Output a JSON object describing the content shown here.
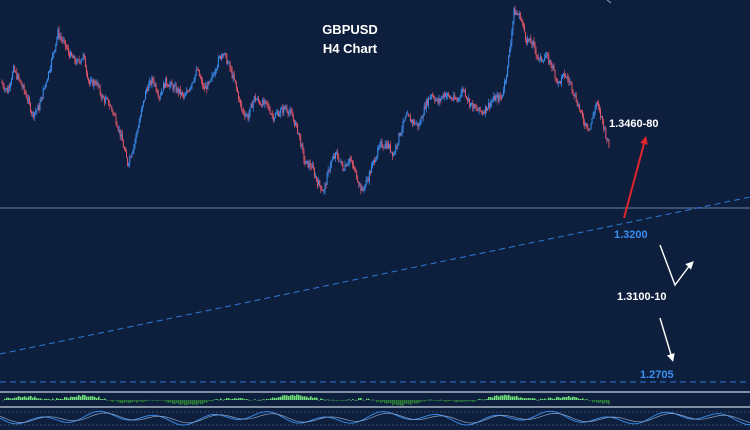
{
  "title": "GBPUSD",
  "subtitle": "H4  Chart",
  "colors": {
    "background": "#0e1f3d",
    "candle_up": "#3a8ef0",
    "candle_down": "#e0566a",
    "trendline": "#2f78d8",
    "level_line": "#8aa4c8",
    "target_up_arrow": "#e0242c",
    "target_down_arrow": "#ffffff",
    "level_label_blue": "#3a8ef0",
    "level_label_white": "#ffffff",
    "histogram_up": "#6fe07a",
    "histogram_down": "#2c7a3a"
  },
  "labels": {
    "resistance_target": "1.3460-80",
    "pivot_level": "1.3200",
    "support_target": "1.3100-10",
    "lower_level": "1.2705"
  },
  "chart_data": {
    "type": "line",
    "series": [
      {
        "values": [
          1.3355,
          1.3335,
          1.338,
          1.3355,
          1.3325,
          1.3285,
          1.33,
          1.335,
          1.34,
          1.346,
          1.3435,
          1.341,
          1.3395,
          1.341,
          1.335,
          1.3355,
          1.332,
          1.331,
          1.328,
          1.3235,
          1.318,
          1.322,
          1.328,
          1.334,
          1.336,
          1.3325,
          1.3355,
          1.3345,
          1.3335,
          1.332,
          1.335,
          1.338,
          1.334,
          1.335,
          1.339,
          1.342,
          1.339,
          1.335,
          1.3295,
          1.328,
          1.332,
          1.331,
          1.3305,
          1.328,
          1.329,
          1.33,
          1.328,
          1.3245,
          1.318,
          1.3175,
          1.314,
          1.312,
          1.318,
          1.32,
          1.317,
          1.319,
          1.316,
          1.312,
          1.315,
          1.319,
          1.322,
          1.322,
          1.32,
          1.3245,
          1.328,
          1.327,
          1.326,
          1.3305,
          1.333,
          1.331,
          1.333,
          1.332,
          1.3315,
          1.334,
          1.331,
          1.3295,
          1.329,
          1.3305,
          1.332,
          1.332,
          1.3385,
          1.3505,
          1.3495,
          1.3445,
          1.3435,
          1.34,
          1.341,
          1.339,
          1.335,
          1.337,
          1.335,
          1.331,
          1.327,
          1.3255,
          1.331,
          1.327,
          1.3215
        ]
      }
    ],
    "levels": [
      1.348,
      1.346,
      1.32,
      1.311,
      1.31,
      1.2705
    ],
    "ylim": [
      1.269,
      1.353
    ]
  }
}
